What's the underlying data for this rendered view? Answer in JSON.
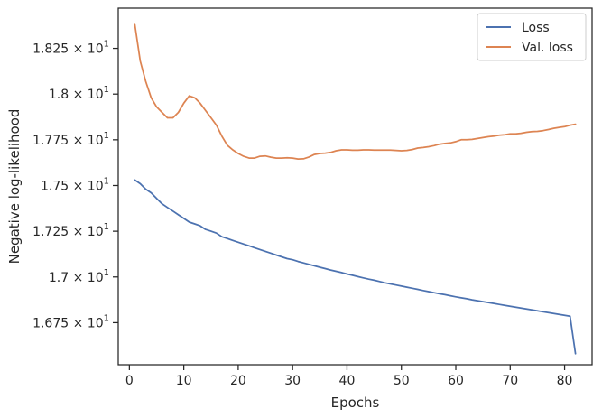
{
  "chart_data": {
    "type": "line",
    "title": "",
    "xlabel": "Epochs",
    "ylabel": "Negative log-likelihood",
    "xlim": [
      -2.05,
      85.05
    ],
    "ylim": [
      16.52,
      18.47
    ],
    "grid": false,
    "legend": "top-right",
    "x_ticks": [
      0,
      10,
      20,
      30,
      40,
      50,
      60,
      70,
      80
    ],
    "x_tick_labels": [
      "0",
      "10",
      "20",
      "30",
      "40",
      "50",
      "60",
      "70",
      "80"
    ],
    "y_ticks": [
      16.75,
      17.0,
      17.25,
      17.5,
      17.75,
      18.0,
      18.25
    ],
    "y_tick_labels": [
      {
        "mantissa": "1.675",
        "base": "10",
        "exp": "1"
      },
      {
        "mantissa": "1.7",
        "base": "10",
        "exp": "1"
      },
      {
        "mantissa": "1.725",
        "base": "10",
        "exp": "1"
      },
      {
        "mantissa": "1.75",
        "base": "10",
        "exp": "1"
      },
      {
        "mantissa": "1.775",
        "base": "10",
        "exp": "1"
      },
      {
        "mantissa": "1.8",
        "base": "10",
        "exp": "1"
      },
      {
        "mantissa": "1.825",
        "base": "10",
        "exp": "1"
      }
    ],
    "series": [
      {
        "name": "Loss",
        "color": "#4c72b0",
        "x": [
          1,
          2,
          3,
          4,
          5,
          6,
          7,
          8,
          9,
          10,
          11,
          12,
          13,
          14,
          15,
          16,
          17,
          18,
          19,
          20,
          21,
          22,
          23,
          24,
          25,
          26,
          27,
          28,
          29,
          30,
          31,
          32,
          33,
          34,
          35,
          36,
          37,
          38,
          39,
          40,
          41,
          42,
          43,
          44,
          45,
          46,
          47,
          48,
          49,
          50,
          51,
          52,
          53,
          54,
          55,
          56,
          57,
          58,
          59,
          60,
          61,
          62,
          63,
          64,
          65,
          66,
          67,
          68,
          69,
          70,
          71,
          72,
          73,
          74,
          75,
          76,
          77,
          78,
          79,
          80,
          81,
          82
        ],
        "values": [
          17.53,
          17.51,
          17.48,
          17.46,
          17.43,
          17.4,
          17.38,
          17.36,
          17.34,
          17.32,
          17.3,
          17.29,
          17.28,
          17.26,
          17.25,
          17.24,
          17.22,
          17.21,
          17.2,
          17.19,
          17.18,
          17.17,
          17.16,
          17.15,
          17.14,
          17.13,
          17.12,
          17.11,
          17.1,
          17.094,
          17.085,
          17.077,
          17.069,
          17.061,
          17.053,
          17.046,
          17.038,
          17.031,
          17.024,
          17.016,
          17.009,
          17.002,
          16.995,
          16.988,
          16.982,
          16.975,
          16.968,
          16.962,
          16.956,
          16.95,
          16.944,
          16.938,
          16.932,
          16.926,
          16.92,
          16.914,
          16.908,
          16.903,
          16.897,
          16.891,
          16.886,
          16.881,
          16.875,
          16.87,
          16.865,
          16.86,
          16.855,
          16.85,
          16.845,
          16.84,
          16.835,
          16.83,
          16.825,
          16.82,
          16.815,
          16.81,
          16.805,
          16.8,
          16.795,
          16.79,
          16.785,
          16.58
        ]
      },
      {
        "name": "Val. loss",
        "color": "#dd8452",
        "x": [
          1,
          2,
          3,
          4,
          5,
          6,
          7,
          8,
          9,
          10,
          11,
          12,
          13,
          14,
          15,
          16,
          17,
          18,
          19,
          20,
          21,
          22,
          23,
          24,
          25,
          26,
          27,
          28,
          29,
          30,
          31,
          32,
          33,
          34,
          35,
          36,
          37,
          38,
          39,
          40,
          41,
          42,
          43,
          44,
          45,
          46,
          47,
          48,
          49,
          50,
          51,
          52,
          53,
          54,
          55,
          56,
          57,
          58,
          59,
          60,
          61,
          62,
          63,
          64,
          65,
          66,
          67,
          68,
          69,
          70,
          71,
          72,
          73,
          74,
          75,
          76,
          77,
          78,
          79,
          80,
          81,
          82
        ],
        "values": [
          18.38,
          18.18,
          18.07,
          17.98,
          17.93,
          17.9,
          17.87,
          17.87,
          17.9,
          17.95,
          17.99,
          17.98,
          17.95,
          17.91,
          17.87,
          17.83,
          17.77,
          17.72,
          17.695,
          17.675,
          17.66,
          17.65,
          17.65,
          17.66,
          17.662,
          17.655,
          17.65,
          17.65,
          17.652,
          17.65,
          17.645,
          17.646,
          17.656,
          17.67,
          17.675,
          17.677,
          17.681,
          17.69,
          17.695,
          17.695,
          17.693,
          17.693,
          17.695,
          17.695,
          17.694,
          17.694,
          17.694,
          17.694,
          17.692,
          17.69,
          17.692,
          17.697,
          17.705,
          17.708,
          17.712,
          17.718,
          17.726,
          17.73,
          17.733,
          17.74,
          17.75,
          17.75,
          17.752,
          17.757,
          17.762,
          17.767,
          17.77,
          17.775,
          17.778,
          17.783,
          17.783,
          17.786,
          17.791,
          17.795,
          17.796,
          17.8,
          17.806,
          17.813,
          17.818,
          17.822,
          17.83,
          17.835
        ]
      }
    ]
  }
}
